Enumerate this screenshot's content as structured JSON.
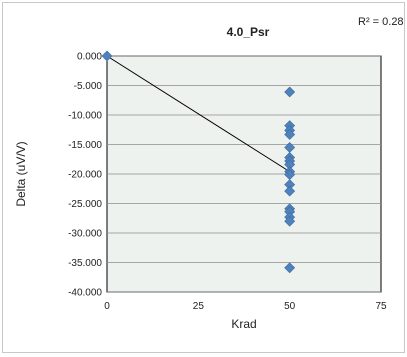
{
  "chart_data": {
    "type": "scatter",
    "title": "4.0_Psr",
    "xlabel": "Krad",
    "ylabel": "Delta (uV/V)",
    "xlim": [
      0,
      75
    ],
    "ylim": [
      -40,
      0
    ],
    "x_ticks": [
      "0",
      "25",
      "50",
      "75"
    ],
    "y_ticks": [
      "0.000",
      "-5.000",
      "-10.000",
      "-15.000",
      "-20.000",
      "-25.000",
      "-30.000",
      "-35.000",
      "-40.000"
    ],
    "grid": true,
    "legend": "none",
    "annotation": "R² = 0.2833",
    "marker_color": "#4f81bd",
    "plot_bg": "#edf2ef",
    "series": [
      {
        "points": [
          [
            0,
            0
          ],
          [
            50,
            -6.1
          ],
          [
            50,
            -11.8
          ],
          [
            50,
            -12.6
          ],
          [
            50,
            -13.3
          ],
          [
            50,
            -15.5
          ],
          [
            50,
            -17.2
          ],
          [
            50,
            -17.8
          ],
          [
            50,
            -18.4
          ],
          [
            50,
            -19.6
          ],
          [
            50,
            -20.1
          ],
          [
            50,
            -21.8
          ],
          [
            50,
            -22.9
          ],
          [
            50,
            -25.9
          ],
          [
            50,
            -26.4
          ],
          [
            50,
            -27.3
          ],
          [
            50,
            -28.0
          ],
          [
            50,
            -35.9
          ]
        ]
      }
    ],
    "trendline": {
      "x": [
        0,
        50
      ],
      "y": [
        0,
        -19.6
      ]
    }
  }
}
